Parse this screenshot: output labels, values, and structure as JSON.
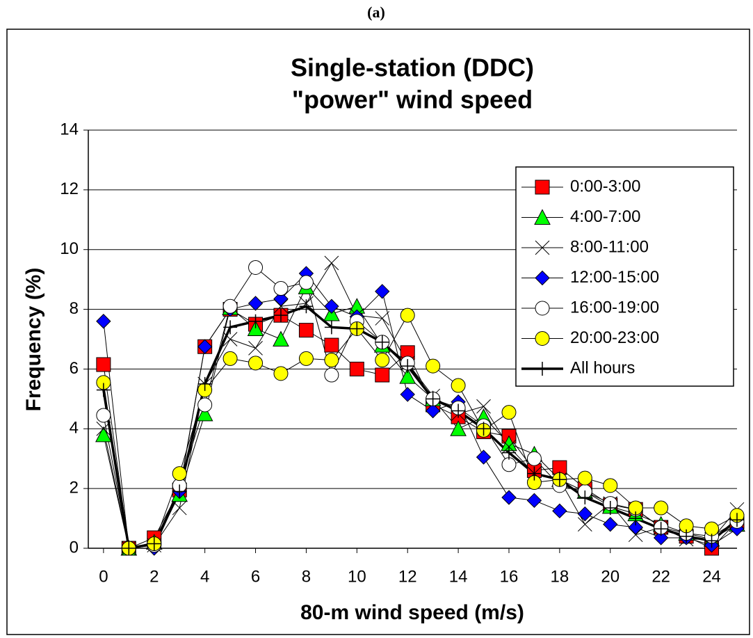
{
  "chart_data": {
    "type": "line",
    "panel_label": "(a)",
    "title": [
      "Single-station (DDC)",
      "\"power\" wind speed"
    ],
    "xlabel": "80-m wind speed (m/s)",
    "ylabel": "Frequency (%)",
    "x": [
      0,
      1,
      2,
      3,
      4,
      5,
      6,
      7,
      8,
      9,
      10,
      11,
      12,
      13,
      14,
      15,
      16,
      17,
      18,
      19,
      20,
      21,
      22,
      23,
      24,
      25
    ],
    "xlim": [
      -0.6,
      25
    ],
    "xticks": [
      0,
      2,
      4,
      6,
      8,
      10,
      12,
      14,
      16,
      18,
      20,
      22,
      24
    ],
    "ylim": [
      0,
      14
    ],
    "yticks": [
      0,
      2,
      4,
      6,
      8,
      10,
      12,
      14
    ],
    "grid": true,
    "legend": "upper right",
    "series": [
      {
        "name": "0:00-3:00",
        "color": "#ff0000",
        "marker": "square",
        "line_width": 1,
        "values": [
          6.15,
          0,
          0.35,
          1.95,
          6.75,
          8.0,
          7.5,
          7.8,
          7.3,
          6.8,
          6.0,
          5.8,
          6.55,
          4.8,
          4.4,
          3.9,
          3.75,
          2.6,
          2.7,
          2.0,
          1.45,
          1.3,
          0.7,
          0.4,
          0,
          0.9
        ]
      },
      {
        "name": "4:00-7:00",
        "color": "#00ff00",
        "marker": "triangle",
        "line_width": 1,
        "values": [
          3.8,
          0,
          0.2,
          1.8,
          4.5,
          8.05,
          7.35,
          7.0,
          8.75,
          7.85,
          8.1,
          6.8,
          5.75,
          5.0,
          4.0,
          4.4,
          3.5,
          3.15,
          2.3,
          1.9,
          1.4,
          1.15,
          0.8,
          0.5,
          0.3,
          0.8
        ]
      },
      {
        "name": "8:00-11:00",
        "color": "#000000",
        "marker": "x",
        "line_width": 1,
        "values": [
          4.0,
          0,
          0.1,
          1.35,
          5.5,
          7.0,
          6.7,
          8.1,
          8.2,
          9.55,
          7.8,
          7.7,
          6.2,
          5.1,
          4.5,
          4.75,
          3.4,
          2.5,
          2.3,
          0.8,
          1.5,
          0.45,
          0.7,
          0.3,
          0.3,
          1.3
        ]
      },
      {
        "name": "12:00-15:00",
        "color": "#0000ff",
        "marker": "diamond",
        "line_width": 1,
        "values": [
          7.6,
          0,
          0.0,
          1.9,
          6.75,
          8.0,
          8.2,
          8.35,
          9.2,
          8.1,
          7.75,
          8.6,
          5.15,
          4.6,
          4.9,
          3.05,
          1.7,
          1.6,
          1.25,
          1.15,
          0.8,
          0.7,
          0.35,
          0.35,
          0.1,
          0.65
        ]
      },
      {
        "name": "16:00-19:00",
        "color": "#ffffff",
        "marker": "circle",
        "line_width": 1,
        "values": [
          4.45,
          0,
          0.1,
          2.1,
          4.8,
          8.1,
          9.4,
          8.7,
          8.9,
          5.8,
          7.6,
          6.9,
          6.2,
          5.0,
          4.7,
          4.1,
          2.8,
          3.0,
          2.1,
          1.9,
          1.5,
          1.3,
          0.7,
          0.5,
          0.4,
          0.9
        ]
      },
      {
        "name": "20:00-23:00",
        "color": "#ffff00",
        "marker": "circle",
        "line_width": 1,
        "values": [
          5.55,
          0,
          0.15,
          2.5,
          5.3,
          6.35,
          6.2,
          5.85,
          6.35,
          6.3,
          7.35,
          6.3,
          7.8,
          6.1,
          5.45,
          3.95,
          4.55,
          2.2,
          2.3,
          2.35,
          2.1,
          1.35,
          1.35,
          0.75,
          0.65,
          1.1
        ]
      },
      {
        "name": "All hours",
        "color": "#000000",
        "marker": "plus",
        "line_width": 3.5,
        "values": [
          5.3,
          0,
          0.15,
          1.9,
          5.5,
          7.4,
          7.6,
          7.8,
          8.1,
          7.4,
          7.35,
          6.9,
          6.1,
          5.0,
          4.6,
          4.0,
          3.2,
          2.5,
          2.3,
          1.7,
          1.35,
          1.0,
          0.65,
          0.4,
          0.25,
          0.95
        ]
      }
    ]
  }
}
